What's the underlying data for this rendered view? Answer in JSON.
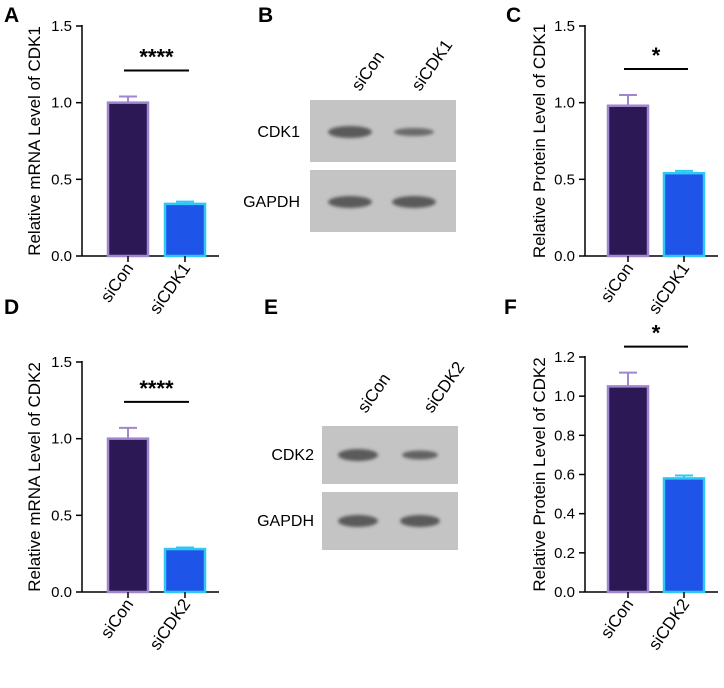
{
  "colors": {
    "dark_bar": "#2b1854",
    "dark_bar_edge": "#9f86cf",
    "blue_bar": "#1e55e8",
    "blue_bar_edge": "#2fc7f4",
    "axis": "#000000",
    "blot_bg": "#c4c4c4",
    "band": "#5a5a5a"
  },
  "chart_data": [
    {
      "id": "A",
      "type": "bar",
      "panel": "A",
      "title": "",
      "categories": [
        "siCon",
        "siCDK1"
      ],
      "values": [
        1.0,
        0.34
      ],
      "errors": [
        0.04,
        0.015
      ],
      "ylabel": "Relative mRNA Level of CDK1",
      "xlabel": "",
      "ylim": [
        0,
        1.5
      ],
      "yticks": [
        0.0,
        0.5,
        1.0,
        1.5
      ],
      "tick_labels": [
        "0.0",
        "0.5",
        "1.0",
        "1.5"
      ],
      "significance": "****"
    },
    {
      "id": "C",
      "type": "bar",
      "panel": "C",
      "title": "",
      "categories": [
        "siCon",
        "siCDK1"
      ],
      "values": [
        0.98,
        0.54
      ],
      "errors": [
        0.07,
        0.015
      ],
      "ylabel": "Relative Protein Level of CDK1",
      "xlabel": "",
      "ylim": [
        0,
        1.5
      ],
      "yticks": [
        0.0,
        0.5,
        1.0,
        1.5
      ],
      "tick_labels": [
        "0.0",
        "0.5",
        "1.0",
        "1.5"
      ],
      "significance": "*"
    },
    {
      "id": "D",
      "type": "bar",
      "panel": "D",
      "title": "",
      "categories": [
        "siCon",
        "siCDK2"
      ],
      "values": [
        1.0,
        0.28
      ],
      "errors": [
        0.07,
        0.01
      ],
      "ylabel": "Relative mRNA Level of CDK2",
      "xlabel": "",
      "ylim": [
        0,
        1.5
      ],
      "yticks": [
        0.0,
        0.5,
        1.0,
        1.5
      ],
      "tick_labels": [
        "0.0",
        "0.5",
        "1.0",
        "1.5"
      ],
      "significance": "****"
    },
    {
      "id": "F",
      "type": "bar",
      "panel": "F",
      "title": "",
      "categories": [
        "siCon",
        "siCDK2"
      ],
      "values": [
        1.05,
        0.58
      ],
      "errors": [
        0.07,
        0.015
      ],
      "ylabel": "Relative Protein Level of CDK2",
      "xlabel": "",
      "ylim": [
        0,
        1.2
      ],
      "yticks": [
        0.0,
        0.2,
        0.4,
        0.6,
        0.8,
        1.0,
        1.2
      ],
      "tick_labels": [
        "0.0",
        "0.2",
        "0.4",
        "0.6",
        "0.8",
        "1.0",
        "1.2"
      ],
      "significance": "*"
    }
  ],
  "blots": [
    {
      "panel": "B",
      "lanes": [
        "siCon",
        "siCDK1"
      ],
      "rows": [
        {
          "label": "CDK1",
          "band_intensity": [
            1.0,
            0.6
          ]
        },
        {
          "label": "GAPDH",
          "band_intensity": [
            1.0,
            1.0
          ]
        }
      ]
    },
    {
      "panel": "E",
      "lanes": [
        "siCon",
        "siCDK2"
      ],
      "rows": [
        {
          "label": "CDK2",
          "band_intensity": [
            1.0,
            0.65
          ]
        },
        {
          "label": "GAPDH",
          "band_intensity": [
            1.0,
            1.0
          ]
        }
      ]
    }
  ]
}
